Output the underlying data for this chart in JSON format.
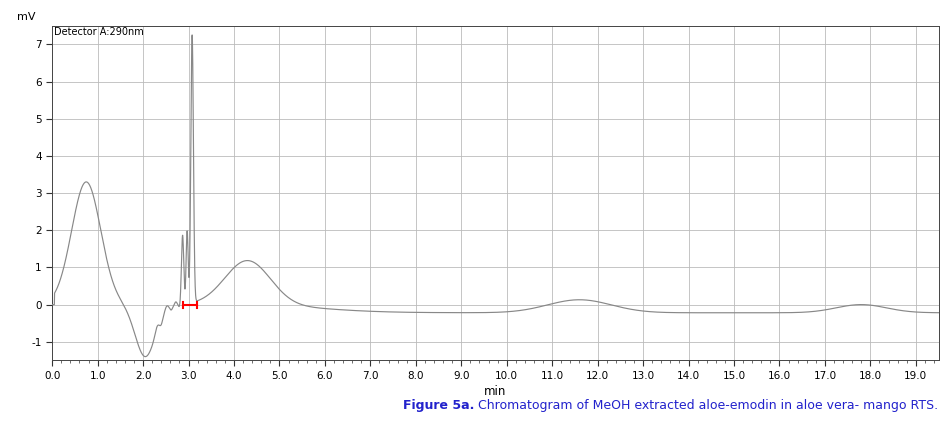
{
  "ylabel_above": "mV",
  "xlabel": "min",
  "detector_label": "Detector A:290nm",
  "xlim": [
    0.0,
    19.5
  ],
  "ylim": [
    -1.5,
    7.5
  ],
  "yticks": [
    -1,
    0,
    1,
    2,
    3,
    4,
    5,
    6,
    7
  ],
  "xticks": [
    0.0,
    1.0,
    2.0,
    3.0,
    4.0,
    5.0,
    6.0,
    7.0,
    8.0,
    9.0,
    10.0,
    11.0,
    12.0,
    13.0,
    14.0,
    15.0,
    16.0,
    17.0,
    18.0,
    19.0
  ],
  "line_color": "#888888",
  "grid_color": "#bbbbbb",
  "bg_color": "#ffffff",
  "red_marker_x1": 2.88,
  "red_marker_x2": 3.18,
  "red_marker_y": 0.0,
  "caption_bold": "Figure 5a.",
  "caption_normal": " Chromatogram of MeOH extracted aloe-emodin in aloe vera- mango RTS.",
  "caption_color": "#2222cc"
}
